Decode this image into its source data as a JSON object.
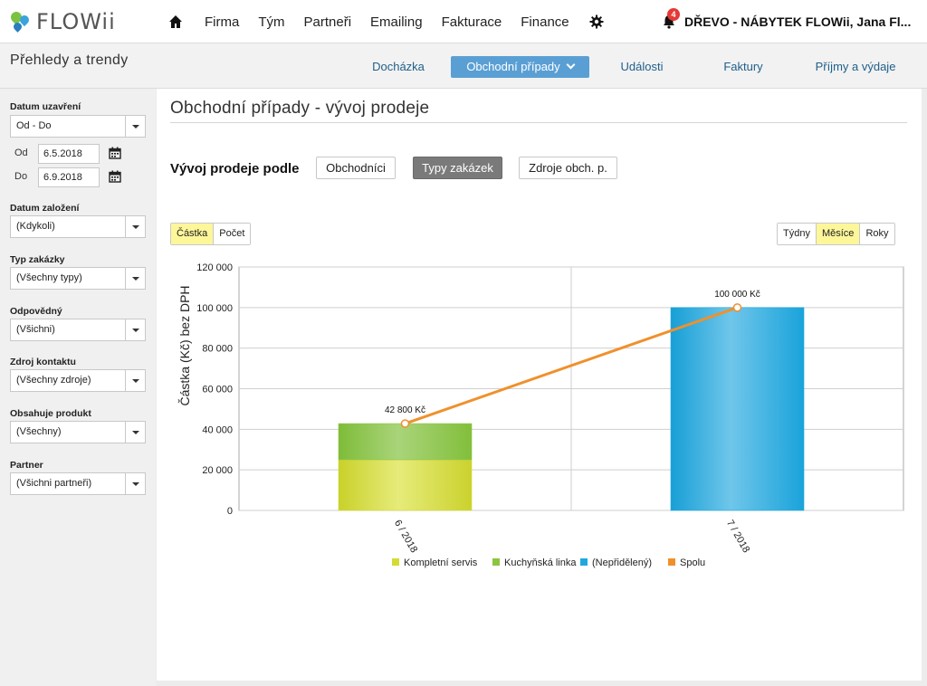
{
  "app": {
    "logo_text": "FLOWii",
    "nav": [
      "Firma",
      "Tým",
      "Partneři",
      "Emailing",
      "Fakturace",
      "Finance"
    ],
    "notification_count": "4",
    "user": "DŘEVO - NÁBYTEK FLOWii, Jana Fl..."
  },
  "subheader": {
    "title": "Přehledy a trendy",
    "tabs": [
      "Docházka",
      "Obchodní případy",
      "Události",
      "Faktury",
      "Příjmy a výdaje"
    ],
    "active_tab": "Obchodní případy"
  },
  "sidebar": {
    "datum_uzavreni": {
      "label": "Datum uzavření",
      "value": "Od - Do"
    },
    "od": {
      "label": "Od",
      "value": "6.5.2018"
    },
    "do": {
      "label": "Do",
      "value": "6.9.2018"
    },
    "datum_zalozeni": {
      "label": "Datum založení",
      "value": "(Kdykoli)"
    },
    "typ_zakazky": {
      "label": "Typ zakázky",
      "value": "(Všechny typy)"
    },
    "odpovedny": {
      "label": "Odpovědný",
      "value": "(Všichni)"
    },
    "zdroj_kontaktu": {
      "label": "Zdroj kontaktu",
      "value": "(Všechny zdroje)"
    },
    "obsahuje_produkt": {
      "label": "Obsahuje produkt",
      "value": "(Všechny)"
    },
    "partner": {
      "label": "Partner",
      "value": "(Všichni partneři)"
    }
  },
  "main": {
    "title": "Obchodní případy - vývoj prodeje",
    "group_label": "Vývoj prodeje podle",
    "group_buttons": [
      "Obchodníci",
      "Typy zakázek",
      "Zdroje obch. p."
    ],
    "active_group": "Typy zakázek",
    "metric_toggle": [
      "Částka",
      "Počet"
    ],
    "active_metric": "Částka",
    "period_toggle": [
      "Týdny",
      "Měsíce",
      "Roky"
    ],
    "active_period": "Měsíce"
  },
  "chart_data": {
    "type": "bar",
    "stacked": true,
    "categories": [
      "6 / 2018",
      "7 / 2018"
    ],
    "series": [
      {
        "name": "Kompletní servis",
        "values": [
          25000,
          0
        ],
        "color": "#d4db34"
      },
      {
        "name": "Kuchyňská linka",
        "values": [
          17800,
          0
        ],
        "color": "#8cc540"
      },
      {
        "name": "(Nepřidělený)",
        "values": [
          0,
          100000
        ],
        "color": "#1fa8de"
      }
    ],
    "line": {
      "name": "Spolu",
      "values": [
        42800,
        100000
      ],
      "color": "#f0902c"
    },
    "data_labels": [
      "42 800 Kč",
      "100 000 Kč"
    ],
    "ylabel": "Částka (Kč) bez DPH",
    "ylim": [
      0,
      120000
    ],
    "yticks": [
      "0",
      "20 000",
      "40 000",
      "60 000",
      "80 000",
      "100 000",
      "120 000"
    ],
    "legend_position": "bottom",
    "grid": true
  }
}
